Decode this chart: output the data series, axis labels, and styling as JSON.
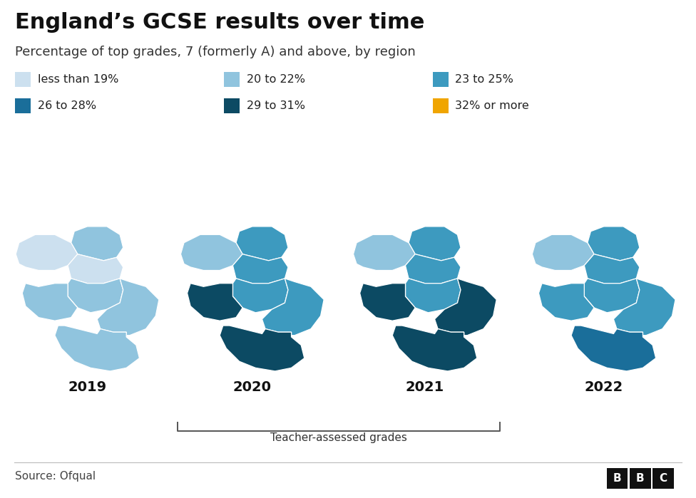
{
  "title": "England’s GCSE results over time",
  "subtitle": "Percentage of top grades, 7 (formerly A) and above, by region",
  "source": "Source: Ofqual",
  "years": [
    "2019",
    "2020",
    "2021",
    "2022"
  ],
  "legend_items": [
    {
      "label": "less than 19%",
      "color": "#cce0ef"
    },
    {
      "label": "20 to 22%",
      "color": "#90c4de"
    },
    {
      "label": "23 to 25%",
      "color": "#3d9abf"
    },
    {
      "label": "26 to 28%",
      "color": "#1a6e9a"
    },
    {
      "label": "29 to 31%",
      "color": "#0c4a63"
    },
    {
      "label": "32% or more",
      "color": "#f0a500"
    }
  ],
  "background_color": "#ffffff",
  "region_colors_2019": {
    "North East": "#90c4de",
    "North West": "#cce0ef",
    "Yorkshire": "#cce0ef",
    "East Midlands": "#90c4de",
    "West Midlands": "#90c4de",
    "East of England": "#90c4de",
    "London": "#1a6e9a",
    "South East": "#90c4de",
    "South West": "#90c4de"
  },
  "region_colors_2020": {
    "North East": "#3d9abf",
    "North West": "#90c4de",
    "Yorkshire": "#3d9abf",
    "East Midlands": "#3d9abf",
    "West Midlands": "#3d9abf",
    "East of England": "#3d9abf",
    "London": "#1a6e9a",
    "South East": "#0c4a63",
    "South West": "#0c4a63"
  },
  "region_colors_2021": {
    "North East": "#3d9abf",
    "North West": "#90c4de",
    "Yorkshire": "#3d9abf",
    "East Midlands": "#3d9abf",
    "West Midlands": "#0c4a63",
    "East of England": "#0c4a63",
    "London": "#f0a500",
    "South East": "#0c4a63",
    "South West": "#0c4a63"
  },
  "region_colors_2022": {
    "North East": "#3d9abf",
    "North West": "#90c4de",
    "Yorkshire": "#3d9abf",
    "East Midlands": "#3d9abf",
    "West Midlands": "#1a6e9a",
    "East of England": "#3d9abf",
    "London": "#f0a500",
    "South East": "#1a6e9a",
    "South West": "#3d9abf"
  },
  "title_fontsize": 22,
  "subtitle_fontsize": 13,
  "legend_fontsize": 11.5,
  "year_fontsize": 14,
  "source_fontsize": 11,
  "teacher_assessed_fontsize": 11
}
